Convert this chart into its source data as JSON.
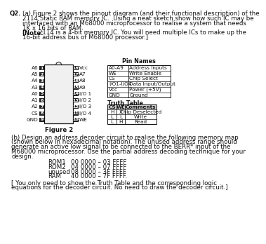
{
  "title_q": "Q2.",
  "para_a_lines": [
    {
      "text": "(a) Figure 2 shows the pinout diagram (and their functional description) of the",
      "indent": 28
    },
    {
      "text": "2114 Static RAM memory IC.  Using a neat sketch show how such IC may be",
      "indent": 28
    },
    {
      "text": "interfaced with an M68000 microprocessor to realise a system that needs",
      "indent": 28
    },
    {
      "text": "1K x 16 bits of RAM.",
      "indent": 28
    },
    {
      "text": "[Note: 2114 is a 4-bit memory IC. You will need multiple ICs to make up the",
      "indent": 28,
      "bold_prefix": "[Note:"
    },
    {
      "text": "16-bit address bus of M68000 processor.]",
      "indent": 28
    }
  ],
  "left_pins": [
    {
      "pin": "A6",
      "num": "1"
    },
    {
      "pin": "A5",
      "num": "2"
    },
    {
      "pin": "A4",
      "num": "3"
    },
    {
      "pin": "A3",
      "num": "4"
    },
    {
      "pin": "A0",
      "num": "5"
    },
    {
      "pin": "A1",
      "num": "6"
    },
    {
      "pin": "A2",
      "num": "7"
    },
    {
      "pin": "CS",
      "num": "8"
    },
    {
      "pin": "GND",
      "num": "9"
    }
  ],
  "right_pins": [
    {
      "pin": "Vcc",
      "num": "18"
    },
    {
      "pin": "A7",
      "num": "17"
    },
    {
      "pin": "A8",
      "num": "16"
    },
    {
      "pin": "A9",
      "num": "15"
    },
    {
      "pin": "I/O 1",
      "num": "14"
    },
    {
      "pin": "I/O 2",
      "num": "13"
    },
    {
      "pin": "I/O 3",
      "num": "12"
    },
    {
      "pin": "I/O 4",
      "num": "11"
    },
    {
      "pin": "WE",
      "num": "10"
    }
  ],
  "pin_names_header": "Pin Names",
  "pin_names": [
    {
      "name": "A0-A9",
      "desc": "Address Inputs"
    },
    {
      "name": "WE",
      "desc": "Write Enable"
    },
    {
      "name": "CS",
      "desc": "Chip Select"
    },
    {
      "name": "I/O1-I/O4",
      "desc": "Data Input/Output"
    },
    {
      "name": "Vcc",
      "desc": "Power (+5V)"
    },
    {
      "name": "GND",
      "desc": "Ground"
    }
  ],
  "truth_table_title": "Truth Table",
  "truth_table_headers": [
    "CS",
    "WE",
    "Comments"
  ],
  "truth_table_rows": [
    [
      "H",
      "X",
      "Chip Deselected"
    ],
    [
      "L",
      "L",
      "Write"
    ],
    [
      "L",
      "H",
      "Read"
    ]
  ],
  "figure_label": "Figure 2",
  "para_b_lines": [
    "(b) Design an address decoder circuit to realise the following memory map",
    "(shown below in hexadecimal notation). The unused address range should",
    "generate an active low signal to be connected to the BERR* input of the",
    "M68000 microprocessor. Use the partial address decoding technique for your",
    "design."
  ],
  "memory_map": [
    {
      "label": "ROM1",
      "range": "00 0000 – 03 FFFF"
    },
    {
      "label": "ROM2",
      "range": "04 0000 – 07 FFFF"
    },
    {
      "label": "unused",
      "range": "08 0000 – 3F FFFF"
    },
    {
      "label": "RAM",
      "range": "40 0000 – 7F FFFF."
    }
  ],
  "para_c_lines": [
    "[ You only need to show the Truth Table and the corresponding logic",
    "equations for the decoder circuit. No need to draw the decoder circuit.]"
  ],
  "bg_color": "#ffffff",
  "text_color": "#111111",
  "box_fill": "#222222",
  "box_text": "#ffffff",
  "ic_fill": "#f0f0f0",
  "table_header_fill": "#cccccc"
}
